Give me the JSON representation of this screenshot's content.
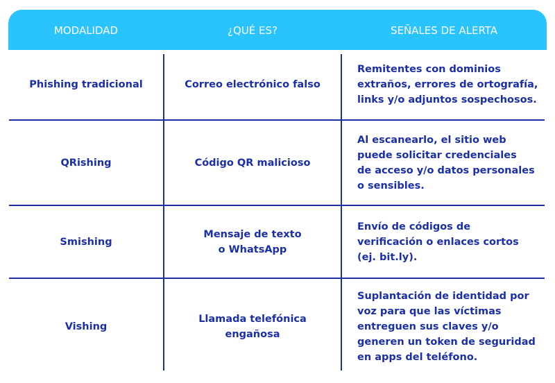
{
  "colors": {
    "header_bg": "#29c3fd",
    "text": "#1a2fa8",
    "lines": "#1a2fa8"
  },
  "headers": [
    "MODALIDAD",
    "¿QUÉ ES?",
    "SEÑALES DE ALERTA"
  ],
  "rows": [
    {
      "modalidad": [
        "Phishing tradicional"
      ],
      "que_es": [
        "Correo electrónico falso"
      ],
      "senales": [
        "Remitentes con dominios",
        "extraños, errores de ortografía,",
        "links y/o adjuntos sospechosos."
      ]
    },
    {
      "modalidad": [
        "QRishing"
      ],
      "que_es": [
        "Código QR malicioso"
      ],
      "senales": [
        "Al escanearlo, el sitio web",
        "puede solicitar credenciales",
        "de acceso y/o datos personales",
        "o sensibles."
      ]
    },
    {
      "modalidad": [
        "Smishing"
      ],
      "que_es": [
        "Mensaje de texto",
        "o WhatsApp"
      ],
      "senales": [
        "Envío de códigos de",
        "verificación o enlaces cortos",
        "(ej. bit.ly)."
      ]
    },
    {
      "modalidad": [
        "Vishing"
      ],
      "que_es": [
        "Llamada telefónica",
        "engañosa"
      ],
      "senales": [
        "Suplantación de identidad por",
        "voz para que las víctimas",
        "entreguen sus claves y/o",
        "generen un token de seguridad",
        "en apps del teléfono."
      ]
    }
  ]
}
